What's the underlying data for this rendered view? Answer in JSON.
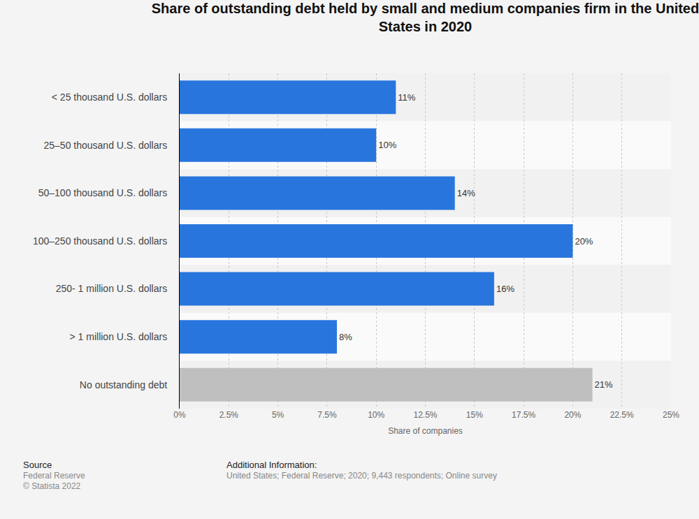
{
  "chart_data": {
    "type": "bar",
    "orientation": "horizontal",
    "title": "Share of outstanding debt held by small and medium companies firm in the United States in 2020",
    "x_label": "Share of companies",
    "categories": [
      "< 25 thousand U.S. dollars",
      "25–50 thousand U.S. dollars",
      "50–100 thousand U.S. dollars",
      "100–250 thousand U.S. dollars",
      "250- 1 million U.S. dollars",
      "> 1 million U.S. dollars",
      "No outstanding debt"
    ],
    "values": [
      11,
      10,
      14,
      20,
      16,
      8,
      21
    ],
    "value_labels": [
      "11%",
      "10%",
      "14%",
      "20%",
      "16%",
      "8%",
      "21%"
    ],
    "colors": [
      "#2876dd",
      "#2876dd",
      "#2876dd",
      "#2876dd",
      "#2876dd",
      "#2876dd",
      "#bfbfbf"
    ],
    "xlim": [
      0,
      25
    ],
    "xticks": [
      {
        "value": 0,
        "label": "0%"
      },
      {
        "value": 2.5,
        "label": "2.5%"
      },
      {
        "value": 5,
        "label": "5%"
      },
      {
        "value": 7.5,
        "label": "7.5%"
      },
      {
        "value": 10,
        "label": "10%"
      },
      {
        "value": 12.5,
        "label": "12.5%"
      },
      {
        "value": 15,
        "label": "15%"
      },
      {
        "value": 17.5,
        "label": "17.5%"
      },
      {
        "value": 20,
        "label": "20%"
      },
      {
        "value": 22.5,
        "label": "22.5%"
      },
      {
        "value": 25,
        "label": "25%"
      }
    ],
    "grid": true,
    "data_labels": true,
    "annotations": [
      "Source",
      "Federal Reserve",
      "© Statista 2022",
      "Additional Information:",
      "United States; Federal Reserve; 2020; 9,443 respondents; Online survey"
    ]
  }
}
